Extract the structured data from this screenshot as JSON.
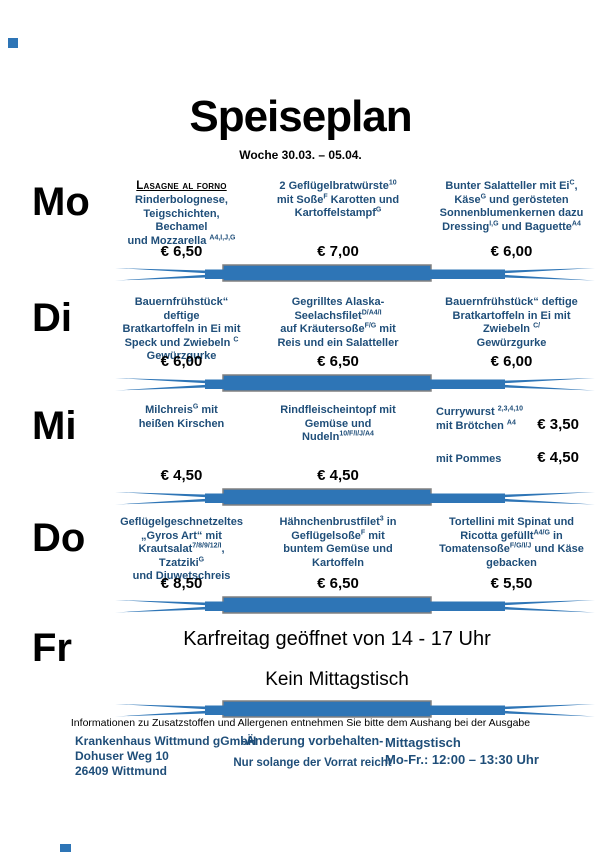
{
  "title": "Speiseplan",
  "subtitle": "Woche 30.03. – 05.04.",
  "colors": {
    "accent": "#2E75B6",
    "divider_border": "#808080",
    "menu_text": "#1F4E79"
  },
  "days": [
    {
      "label": "Mo",
      "items": [
        {
          "heading": "Lasagne al forno",
          "body": [
            {
              "t": "Rinderbolognese,\nTeigschichten, Bechamel\nund Mozzarella ",
              "sup": "A4,I,J,G"
            }
          ],
          "price": "€ 6,50"
        },
        {
          "body": [
            {
              "t": "2 Geflügelbratwürste",
              "sup": "10"
            },
            {
              "t": "\nmit Soße",
              "sup": "F"
            },
            {
              "t": " Karotten und\nKartoffelstampf",
              "sup": "G"
            }
          ],
          "price": "€ 7,00"
        },
        {
          "body": [
            {
              "t": "Bunter Salatteller mit Ei",
              "sup": "C"
            },
            {
              "t": ",\nKäse",
              "sup": "G"
            },
            {
              "t": " und gerösteten\nSonnenblumenkernen dazu\nDressing",
              "sup": "I,G"
            },
            {
              "t": " und Baguette",
              "sup": "A4"
            }
          ],
          "price": "€ 6,00"
        }
      ]
    },
    {
      "label": "Di",
      "items": [
        {
          "body": [
            {
              "t": "Bauernfrühstück“ deftige\nBratkartoffeln in Ei mit\nSpeck und Zwiebeln ",
              "sup": "C"
            },
            {
              "t": "\nGewürzgurke"
            }
          ],
          "price": "€ 6,00"
        },
        {
          "body": [
            {
              "t": "Gegrilltes Alaska-\nSeelachsfilet",
              "sup": "D/A4/I"
            },
            {
              "t": "\nauf Kräutersoße",
              "sup": "F/G"
            },
            {
              "t": " mit\nReis und ein Salatteller"
            }
          ],
          "price": "€ 6,50"
        },
        {
          "body": [
            {
              "t": "Bauernfrühstück“ deftige\nBratkartoffeln in Ei mit\nZwiebeln ",
              "sup": "C/"
            },
            {
              "t": "\nGewürzgurke"
            }
          ],
          "price": "€ 6,00"
        }
      ]
    },
    {
      "label": "Mi",
      "items": [
        {
          "body": [
            {
              "t": "Milchreis",
              "sup": "G"
            },
            {
              "t": " mit\nheißen Kirschen"
            }
          ],
          "price": "€ 4,50"
        },
        {
          "body": [
            {
              "t": "Rindfleischeintopf mit\nGemüse und\nNudeln",
              "sup": "10/F/I/J/A4"
            }
          ],
          "price": "€ 4,50"
        },
        {
          "variants": [
            {
              "body": [
                {
                  "t": "Currywurst ",
                  "sup": "2,3,4,10"
                },
                {
                  "t": "\nmit Brötchen ",
                  "sup": "A4"
                }
              ],
              "price": "€ 3,50"
            },
            {
              "body": [
                {
                  "t": "mit Pommes"
                }
              ],
              "price": "€ 4,50"
            }
          ]
        }
      ]
    },
    {
      "label": "Do",
      "items": [
        {
          "body": [
            {
              "t": "Geflügelgeschnetzeltes\n„Gyros Art“ mit\nKrautsalat",
              "sup": "7/8/9/12/I"
            },
            {
              "t": ", Tzatziki",
              "sup": "G"
            },
            {
              "t": "\nund Djuwetschreis"
            }
          ],
          "price": "€ 8,50"
        },
        {
          "body": [
            {
              "t": "Hähnchenbrustfilet",
              "sup": "3"
            },
            {
              "t": " in\nGeflügelsoße",
              "sup": "F"
            },
            {
              "t": " mit\nbuntem Gemüse und\nKartoffeln"
            }
          ],
          "price": "€ 6,50"
        },
        {
          "body": [
            {
              "t": "Tortellini mit Spinat und\nRicotta gefüllt",
              "sup": "A4/G"
            },
            {
              "t": " in\nTomatensoße",
              "sup": "F/G/I/J"
            },
            {
              "t": " und Käse\ngebacken"
            }
          ],
          "price": "€ 5,50"
        }
      ]
    },
    {
      "label": "Fr",
      "notice": [
        "Karfreitag geöffnet von 14 - 17 Uhr",
        "Kein Mittagstisch"
      ]
    }
  ],
  "info_line": "Informationen zu Zusatzstoffen und Allergenen entnehmen Sie bitte dem Aushang bei der Ausgabe",
  "footer": {
    "address": [
      "Krankenhaus Wittmund gGmbH",
      "Dohuser Weg 10",
      "26409 Wittmund"
    ],
    "change_note": "-Änderung vorbehalten-",
    "stock_note": "Nur solange der Vorrat reicht",
    "lunch_title": "Mittagstisch",
    "lunch_hours": "Mo-Fr.: 12:00 – 13:30 Uhr"
  }
}
